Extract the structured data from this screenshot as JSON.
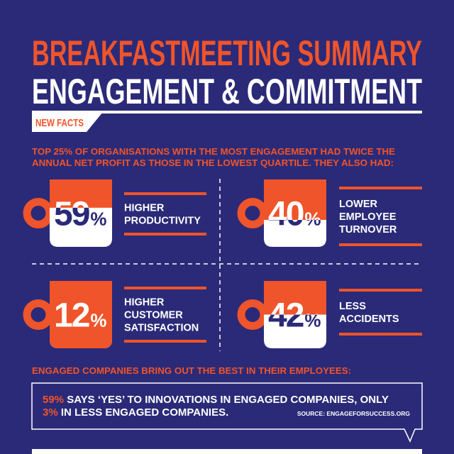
{
  "header": {
    "title": "BREAKFASTMEETING SUMMARY",
    "subtitle": "ENGAGEMENT & COMMITMENT",
    "tag": "NEW FACTS"
  },
  "intro": [
    "TOP 25% OF ORGANISATIONS WITH THE MOST ENGAGEMENT HAD TWICE THE",
    "ANNUAL NET PROFIT AS THOSE IN THE LOWEST QUARTILE. THEY ALSO HAD:"
  ],
  "stats": [
    {
      "value": 59,
      "unit": "%",
      "label": [
        "HIGHER",
        "PRODUCTIVITY"
      ]
    },
    {
      "value": 40,
      "unit": "%",
      "label": [
        "LOWER",
        "EMPLOYEE",
        "TURNOVER"
      ]
    },
    {
      "value": 12,
      "unit": "%",
      "label": [
        "HIGHER",
        "CUSTOMER",
        "SATISFACTION"
      ]
    },
    {
      "value": 42,
      "unit": "%",
      "label": [
        "LESS",
        "ACCIDENTS"
      ]
    }
  ],
  "footer": {
    "heading": "ENGAGED COMPANIES BRING OUT THE BEST IN THEIR EMPLOYEES:",
    "quote": [
      [
        "59%",
        " SAYS ‘YES’ TO INNOVATIONS IN ENGAGED COMPANIES, ONLY"
      ],
      [
        "3%",
        " IN LESS ENGAGED COMPANIES."
      ]
    ],
    "source": "SOURCE: ENGAGEFORSUCCESS.ORG"
  }
}
